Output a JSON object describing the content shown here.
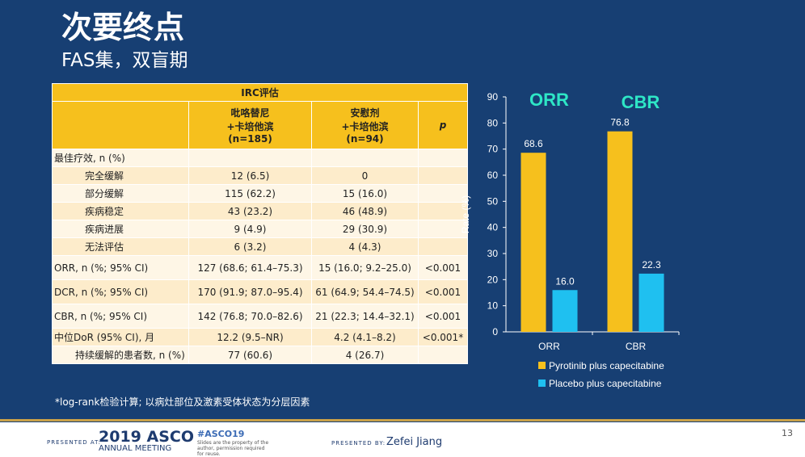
{
  "title": "次要终点",
  "subtitle": "FAS集，双盲期",
  "table": {
    "group_header": "IRC评估",
    "col1": "吡咯替尼\n+卡培他滨\n(n=185)",
    "col2": "安慰剂\n+卡培他滨\n(n=94)",
    "col3": "p",
    "rows": [
      {
        "label": "最佳疗效, n (%)",
        "a": "",
        "b": "",
        "p": ""
      },
      {
        "label": "完全缓解",
        "a": "12 (6.5)",
        "b": "0",
        "p": ""
      },
      {
        "label": "部分缓解",
        "a": "115 (62.2)",
        "b": "15 (16.0)",
        "p": ""
      },
      {
        "label": "疾病稳定",
        "a": "43 (23.2)",
        "b": "46 (48.9)",
        "p": ""
      },
      {
        "label": "疾病进展",
        "a": "9 (4.9)",
        "b": "29 (30.9)",
        "p": ""
      },
      {
        "label": "无法评估",
        "a": "6 (3.2)",
        "b": "4 (4.3)",
        "p": ""
      },
      {
        "label": "ORR, n (%; 95% CI)",
        "a": "127 (68.6; 61.4–75.3)",
        "b": "15 (16.0; 9.2–25.0)",
        "p": "<0.001"
      },
      {
        "label": "DCR, n (%; 95% CI)",
        "a": "170 (91.9; 87.0–95.4)",
        "b": "61 (64.9; 54.4–74.5)",
        "p": "<0.001"
      },
      {
        "label": "CBR, n (%; 95% CI)",
        "a": "142 (76.8; 70.0–82.6)",
        "b": "21 (22.3; 14.4–32.1)",
        "p": "<0.001"
      },
      {
        "label": "中位DoR (95% CI), 月",
        "a": "12.2 (9.5–NR)",
        "b": "4.2 (4.1–8.2)",
        "p": "<0.001*"
      },
      {
        "label": "持续缓解的患者数, n (%)",
        "a": "77 (60.6)",
        "b": "4 (26.7)",
        "p": ""
      }
    ]
  },
  "footnote": "*log-rank检验计算; 以病灶部位及激素受体状态为分层因素",
  "chart_data": {
    "type": "bar",
    "categories": [
      "ORR",
      "CBR"
    ],
    "series": [
      {
        "name": "Pyrotinib plus capecitabine",
        "color": "#f6c01d",
        "values": [
          68.6,
          76.8
        ]
      },
      {
        "name": "Placebo plus capecitabine",
        "color": "#1fc0f0",
        "values": [
          16.0,
          22.3
        ]
      }
    ],
    "value_labels": [
      [
        "68.6",
        "76.8"
      ],
      [
        "16.0",
        "22.3"
      ]
    ],
    "group_titles": [
      "ORR",
      "CBR"
    ],
    "ylabel": "Rate (%)",
    "ylim": [
      0,
      90
    ],
    "yticks": [
      "0",
      "10",
      "20",
      "30",
      "40",
      "50",
      "60",
      "70",
      "80",
      "90"
    ],
    "legend_position": "bottom"
  },
  "footer": {
    "presented_at": "PRESENTED AT:",
    "asco_year": "2019 ASCO",
    "asco_sub": "ANNUAL MEETING",
    "hashtag": "#ASCO19",
    "tagline": "Slides are the property of the author, permission required for reuse.",
    "presented_by": "PRESENTED BY:",
    "presenter": "Zefei Jiang",
    "page": "13"
  }
}
